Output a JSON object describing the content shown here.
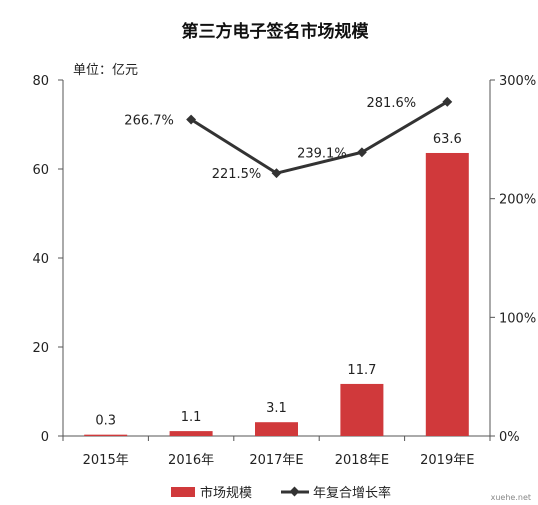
{
  "chart_data": {
    "type": "bar",
    "title": "第三方电子签名市场规模",
    "unit_label": "单位：亿元",
    "categories": [
      "2015年",
      "2016年",
      "2017年E",
      "2018年E",
      "2019年E"
    ],
    "bar_series": {
      "name": "市场规模",
      "values": [
        0.3,
        1.1,
        3.1,
        11.7,
        63.6
      ],
      "labels": [
        "0.3",
        "1.1",
        "3.1",
        "11.7",
        "63.6"
      ],
      "color": "#d0393b"
    },
    "line_series": {
      "name": "年复合增长率",
      "values": [
        null,
        266.7,
        221.5,
        239.1,
        281.6
      ],
      "labels": [
        "",
        "266.7%",
        "221.5%",
        "239.1%",
        "281.6%"
      ],
      "color": "#333333"
    },
    "y_left": {
      "min": 0,
      "max": 80,
      "ticks": [
        "0",
        "20",
        "40",
        "60",
        "80"
      ],
      "tick_values": [
        0,
        20,
        40,
        60,
        80
      ]
    },
    "y_right": {
      "min": 0,
      "max": 300,
      "ticks": [
        "0%",
        "100%",
        "200%",
        "300%"
      ],
      "tick_values": [
        0,
        100,
        200,
        300
      ]
    },
    "legend_position": "bottom",
    "grid": false
  },
  "watermark": "xuehe.net"
}
